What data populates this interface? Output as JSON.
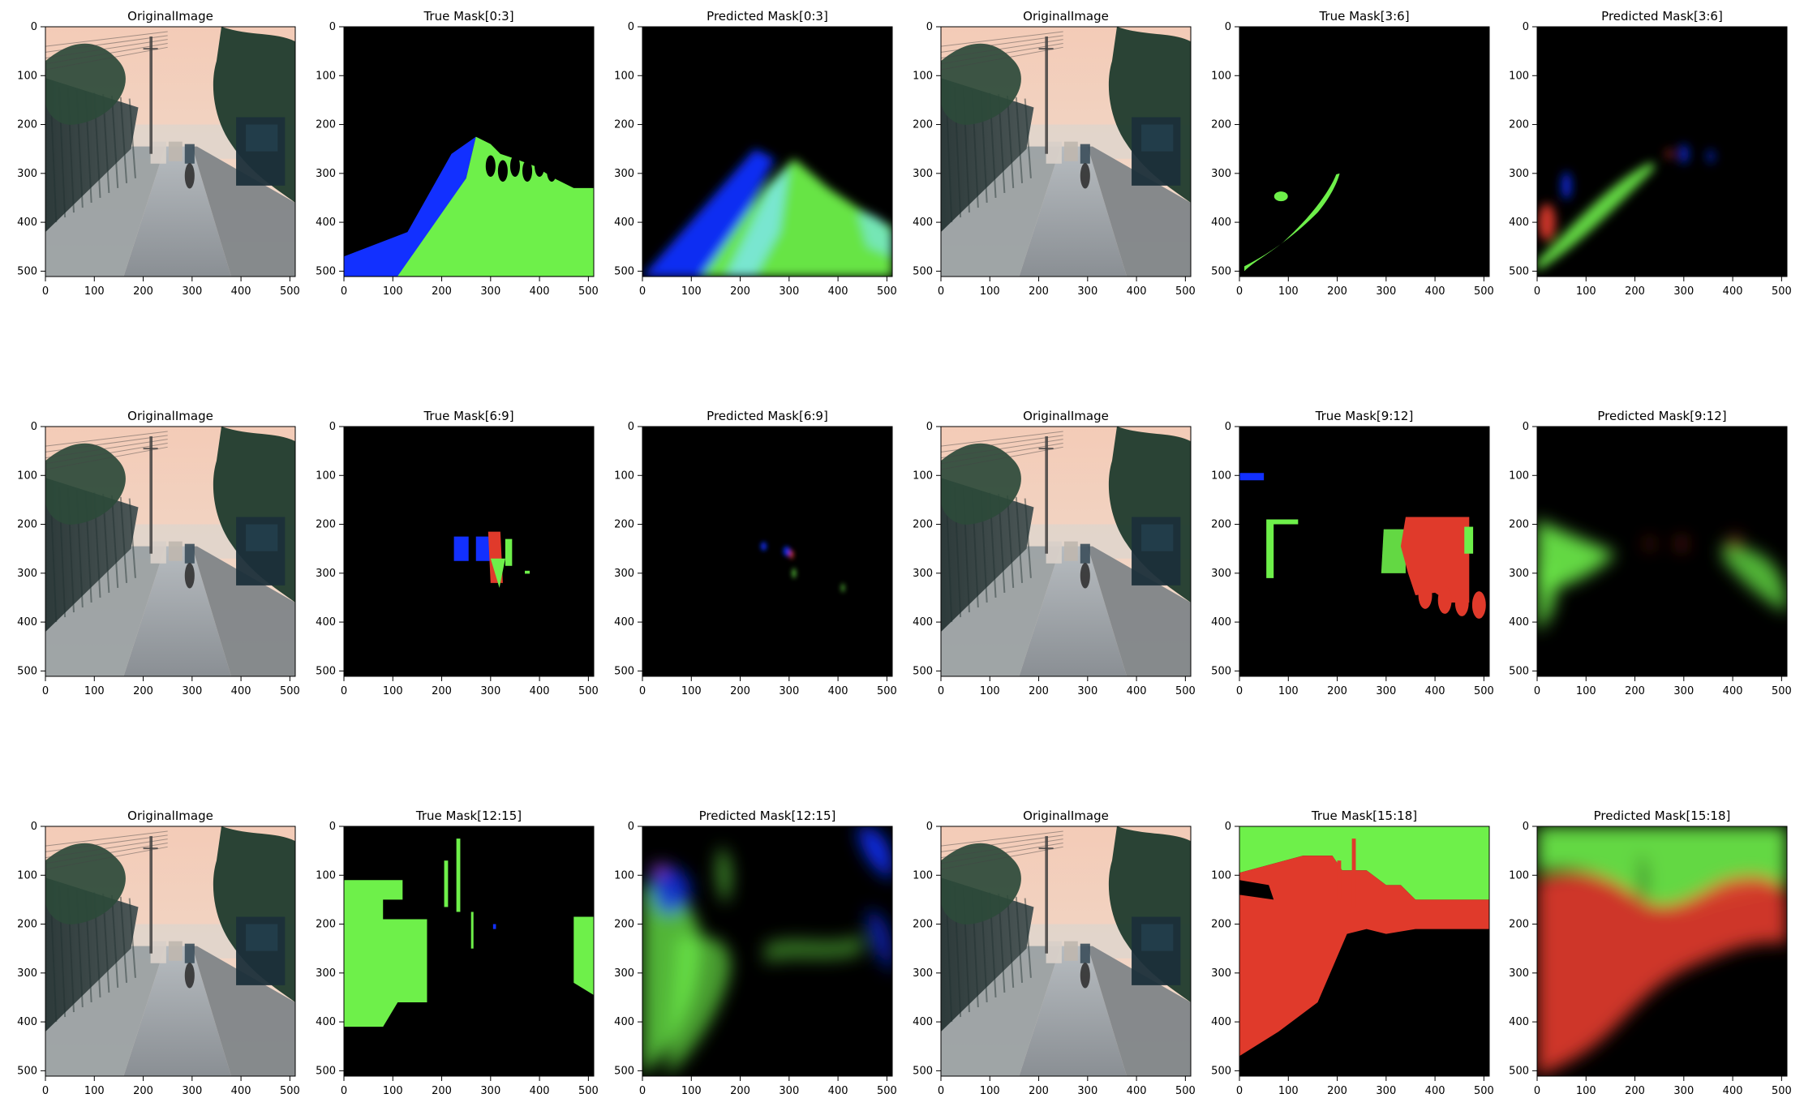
{
  "figure": {
    "panels": [
      {
        "title": "OriginalImage",
        "kind": "original"
      },
      {
        "title": "True Mask[0:3]",
        "kind": "true_0_3"
      },
      {
        "title": "Predicted Mask[0:3]",
        "kind": "pred_0_3"
      },
      {
        "title": "OriginalImage",
        "kind": "original"
      },
      {
        "title": "True Mask[3:6]",
        "kind": "true_3_6"
      },
      {
        "title": "Predicted Mask[3:6]",
        "kind": "pred_3_6"
      },
      {
        "title": "OriginalImage",
        "kind": "original"
      },
      {
        "title": "True Mask[6:9]",
        "kind": "true_6_9"
      },
      {
        "title": "Predicted Mask[6:9]",
        "kind": "pred_6_9"
      },
      {
        "title": "OriginalImage",
        "kind": "original"
      },
      {
        "title": "True Mask[9:12]",
        "kind": "true_9_12"
      },
      {
        "title": "Predicted Mask[9:12]",
        "kind": "pred_9_12"
      },
      {
        "title": "OriginalImage",
        "kind": "original"
      },
      {
        "title": "True Mask[12:15]",
        "kind": "true_12_15"
      },
      {
        "title": "Predicted Mask[12:15]",
        "kind": "pred_12_15"
      },
      {
        "title": "OriginalImage",
        "kind": "original"
      },
      {
        "title": "True Mask[15:18]",
        "kind": "true_15_18"
      },
      {
        "title": "Predicted Mask[15:18]",
        "kind": "pred_15_18"
      }
    ],
    "axes": {
      "x_ticks": [
        0,
        100,
        200,
        300,
        400,
        500
      ],
      "y_ticks": [
        0,
        100,
        200,
        300,
        400,
        500
      ],
      "xlim": [
        0,
        511
      ],
      "ylim": [
        0,
        511
      ]
    },
    "colors": {
      "mask_red": "#e03a2b",
      "mask_green": "#6ef04a",
      "mask_blue": "#1230ff",
      "mask_cyan": "#7de7ff",
      "bg_black": "#000000"
    }
  }
}
